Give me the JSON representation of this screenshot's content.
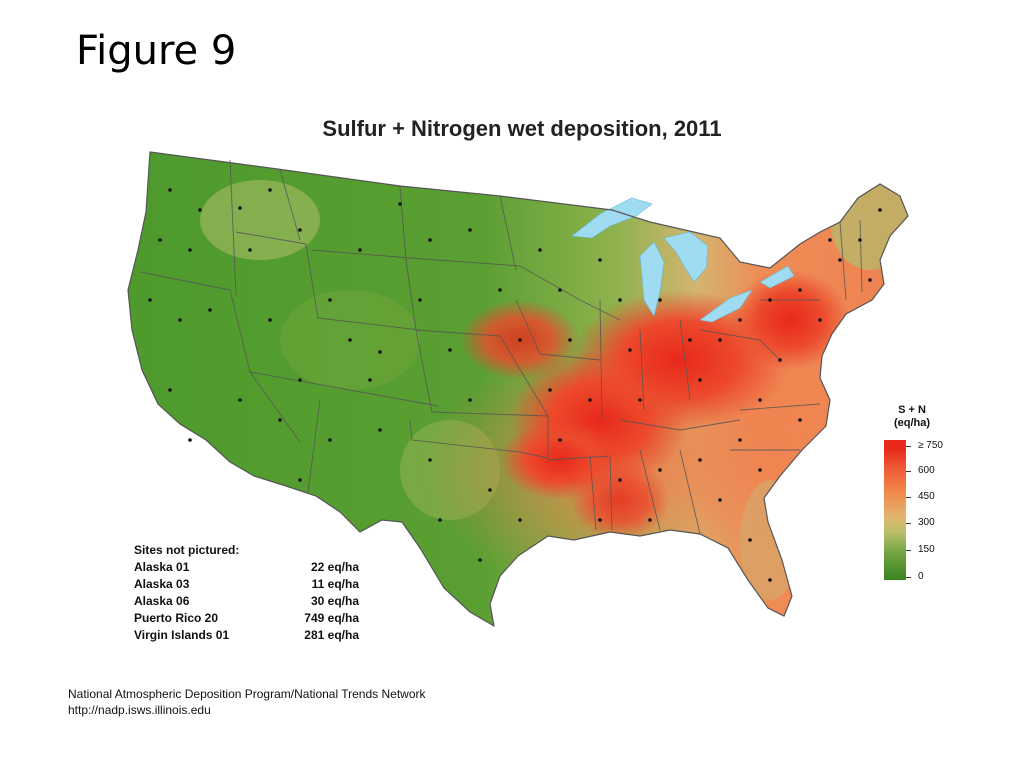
{
  "slide_title": "Figure 9",
  "map_title": "Sulfur + Nitrogen wet deposition, 2011",
  "legend": {
    "title_line1": "S + N",
    "title_line2": "(eq/ha)",
    "labels": [
      "≥ 750",
      "600",
      "450",
      "300",
      "150",
      "0"
    ],
    "colors": {
      "high": "#e8291c",
      "mid": "#f08a4c",
      "low": "#3b8421",
      "water": "#9fdcf2"
    }
  },
  "sites_not_pictured": {
    "heading": "Sites not pictured:",
    "rows": [
      {
        "name": "Alaska 01",
        "value": "22 eq/ha"
      },
      {
        "name": "Alaska 03",
        "value": "11 eq/ha"
      },
      {
        "name": "Alaska 06",
        "value": "30 eq/ha"
      },
      {
        "name": "Puerto Rico 20",
        "value": "749 eq/ha"
      },
      {
        "name": "Virgin Islands 01",
        "value": "281 eq/ha"
      }
    ]
  },
  "source_line1": "National Atmospheric Deposition Program/National Trends Network",
  "source_line2": "http://nadp.isws.illinois.edu"
}
